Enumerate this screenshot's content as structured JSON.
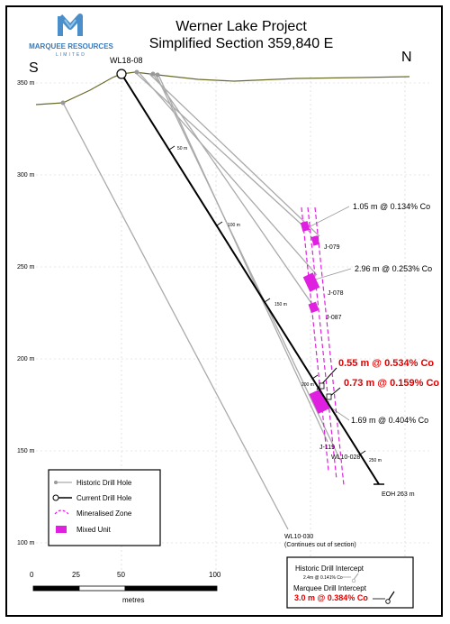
{
  "logo": {
    "company": "MARQUEE RESOURCES",
    "sub": "LIMITED"
  },
  "title": {
    "line1": "Werner Lake Project",
    "line2": "Simplified Section 359,840 E"
  },
  "directions": {
    "left": "S",
    "right": "N"
  },
  "elevation_labels": [
    "350 m",
    "300 m",
    "250 m",
    "200 m",
    "150 m",
    "100 m"
  ],
  "current_hole": {
    "name": "WL18-08",
    "eoh": "EOH 263 m",
    "depth_marks": [
      "50 m",
      "100 m",
      "150 m",
      "200 m",
      "250 m"
    ]
  },
  "historic_holes": {
    "j079": "J-079",
    "j078": "J-078",
    "j087": "J-087",
    "j119": "J-119",
    "wl10_028": "WL10-028",
    "wl10_030": "WL10-030",
    "wl10_030_note": "(Continues out of section)"
  },
  "intercepts": {
    "i1": "1.05 m @ 0.134% Co",
    "i2": "2.96 m @ 0.253% Co",
    "i3": "0.55 m @ 0.534% Co",
    "i4": "0.73 m @ 0.159% Co",
    "i5": "1.69 m @ 0.404% Co"
  },
  "legend": {
    "historic": "Historic Drill Hole",
    "current": "Current Drill Hole",
    "mineralised": "Mineralised Zone",
    "mixed": "Mixed Unit"
  },
  "scale": {
    "ticks": [
      "0",
      "25",
      "50",
      "100"
    ],
    "unit": "metres"
  },
  "intercept_key": {
    "historic_title": "Historic Drill Intercept",
    "historic_example": "2.4m @ 0.141% Co",
    "marquee_title": "Marquee Drill Intercept",
    "marquee_example": "3.0 m @ 0.384% Co"
  },
  "colors": {
    "terrain": "#6b6b2a",
    "historic": "#aaaaaa",
    "current": "#000000",
    "zone": "#e020e0",
    "red": "#e00000"
  }
}
